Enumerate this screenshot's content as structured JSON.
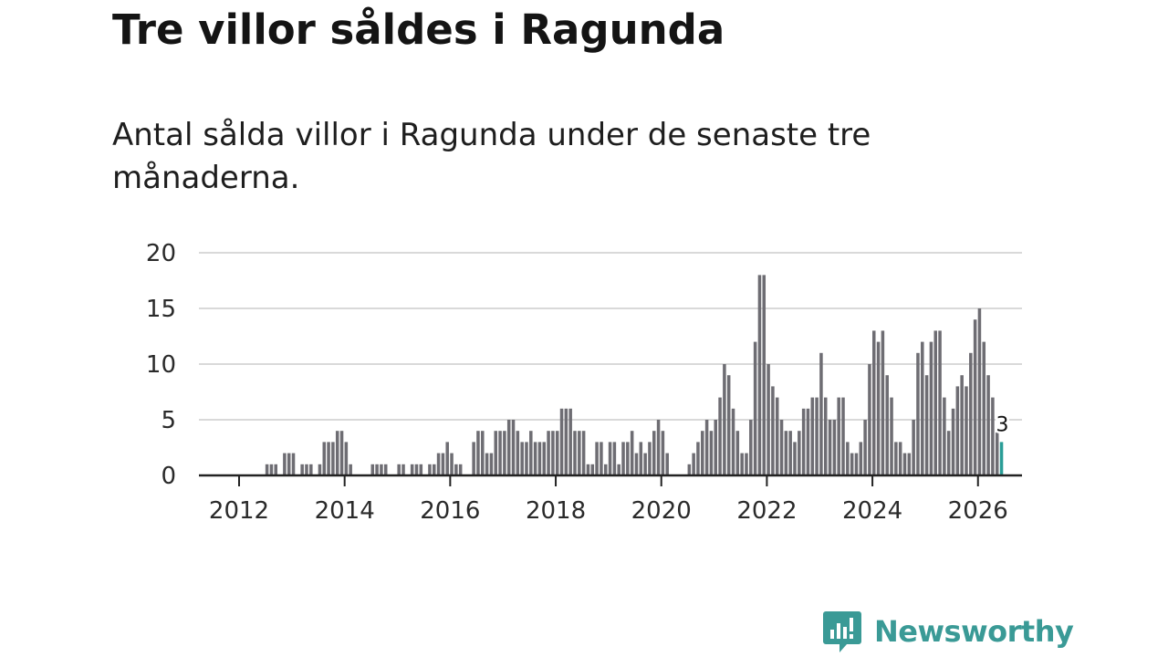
{
  "header": {
    "title": "Tre villor såldes i Ragunda",
    "subtitle": "Antal sålda villor i Ragunda under de senaste tre månaderna."
  },
  "brand": {
    "name": "Newsworthy",
    "color": "#3a9a96",
    "icon": "newsworthy-logo-icon"
  },
  "colors": {
    "bar": "#6e6d73",
    "highlight": "#2a9d97",
    "grid": "#d9d9d9",
    "axis": "#222222"
  },
  "chart_data": {
    "type": "bar",
    "title": "Tre villor såldes i Ragunda",
    "xlabel": "",
    "ylabel": "",
    "ylim": [
      0,
      20
    ],
    "yticks": [
      0,
      5,
      10,
      15,
      20
    ],
    "xticks": [
      "2012",
      "2014",
      "2016",
      "2018",
      "2020",
      "2022",
      "2024",
      "2026"
    ],
    "x_start": "2012-01",
    "grid": true,
    "highlight_label": "3",
    "values": [
      0,
      0,
      0,
      0,
      0,
      0,
      0,
      0,
      0,
      0,
      0,
      0,
      1,
      1,
      1,
      0,
      2,
      2,
      2,
      0,
      1,
      1,
      1,
      0,
      1,
      3,
      3,
      3,
      4,
      4,
      3,
      1,
      0,
      0,
      0,
      0,
      1,
      1,
      1,
      1,
      0,
      0,
      1,
      1,
      0,
      1,
      1,
      1,
      0,
      1,
      1,
      2,
      2,
      3,
      2,
      1,
      1,
      0,
      0,
      3,
      4,
      4,
      2,
      2,
      4,
      4,
      4,
      5,
      5,
      4,
      3,
      3,
      4,
      3,
      3,
      3,
      4,
      4,
      4,
      6,
      6,
      6,
      4,
      4,
      4,
      1,
      1,
      3,
      3,
      1,
      3,
      3,
      1,
      3,
      3,
      4,
      2,
      3,
      2,
      3,
      4,
      5,
      4,
      2,
      0,
      0,
      0,
      0,
      1,
      2,
      3,
      4,
      5,
      4,
      5,
      7,
      10,
      9,
      6,
      4,
      2,
      2,
      5,
      12,
      18,
      18,
      10,
      8,
      7,
      5,
      4,
      4,
      3,
      4,
      6,
      6,
      7,
      7,
      11,
      7,
      5,
      5,
      7,
      7,
      3,
      2,
      2,
      3,
      5,
      10,
      13,
      12,
      13,
      9,
      7,
      3,
      3,
      2,
      2,
      5,
      11,
      12,
      9,
      12,
      13,
      13,
      7,
      4,
      6,
      8,
      9,
      8,
      11,
      14,
      15,
      12,
      9,
      7,
      4,
      3
    ]
  }
}
